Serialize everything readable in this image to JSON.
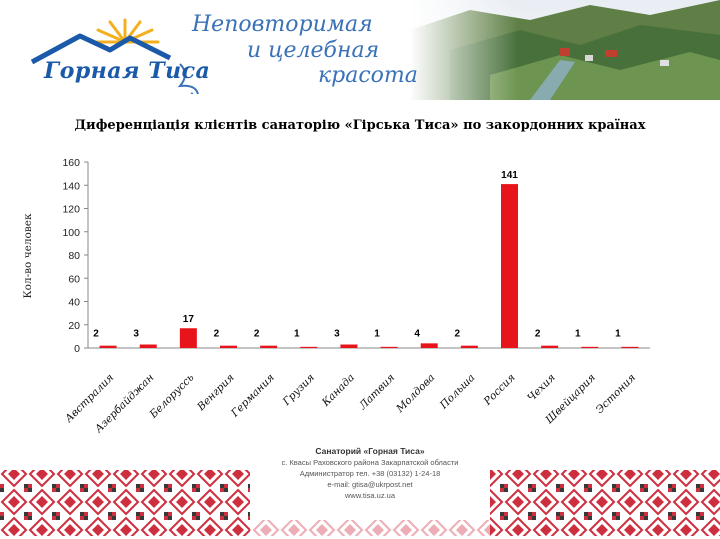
{
  "header": {
    "logo_text": "Горная Тиса",
    "slogan_line1": "Неповторимая",
    "slogan_line2": "и целебная",
    "slogan_line3": "красота"
  },
  "chart_data": {
    "type": "bar",
    "title": "Диференціація клієнтів санаторію «Гірська Тиса» по закордонних країнах",
    "ylabel": "Кол-во человек",
    "xlabel": "",
    "ylim": [
      0,
      160
    ],
    "yticks": [
      0,
      20,
      40,
      60,
      80,
      100,
      120,
      140,
      160
    ],
    "grid": false,
    "legend": "none",
    "bar_color": "#e8141c",
    "categories": [
      "Австралия",
      "Азербайджан",
      "Белоруссь",
      "Венгрия",
      "Германия",
      "Грузия",
      "Канада",
      "Латвия",
      "Молдова",
      "Польша",
      "Россия",
      "Чехия",
      "Швейцария",
      "Эстония"
    ],
    "values": [
      2,
      3,
      17,
      2,
      2,
      1,
      3,
      1,
      4,
      2,
      141,
      2,
      1,
      1
    ]
  },
  "footer": {
    "line1": "Санаторий «Горная Тиса»",
    "line2": "с. Квасы Раховского района Закарпатской области",
    "line3": "Администратор тел. +38 (03132) 1-24-18",
    "line4": "e-mail: gtisa@ukrpost.net",
    "line5": "www.tisa.uz.ua"
  }
}
